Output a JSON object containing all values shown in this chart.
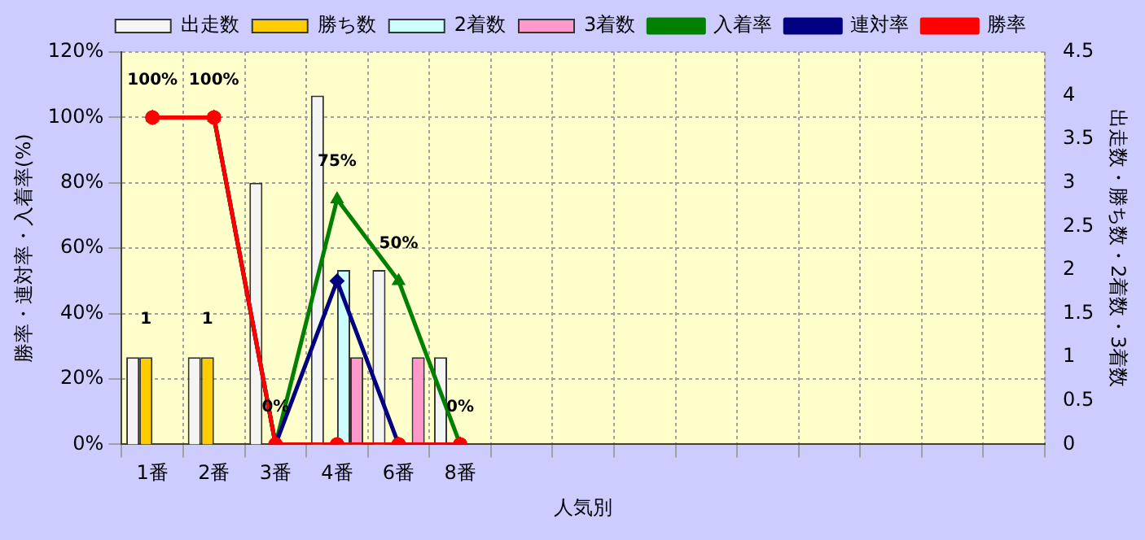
{
  "chart_data": {
    "type": "bar",
    "xlabel": "人気別",
    "ylabel": "勝率・連対率・入着率(%)",
    "y2label": "出走数・勝ち数・2着数・3着数",
    "categories": [
      "1番",
      "2番",
      "3番",
      "4番",
      "6番",
      "8番",
      null,
      null,
      null,
      null,
      null,
      null,
      null,
      null,
      null
    ],
    "series": [
      {
        "name": "出走数",
        "axis": "y2",
        "color": "#f4f4f4",
        "values": [
          1,
          1,
          3,
          4,
          2,
          1,
          null,
          null,
          null,
          null,
          null,
          null,
          null,
          null,
          null
        ]
      },
      {
        "name": "勝ち数",
        "axis": "y2",
        "color": "#ffcc00",
        "values": [
          1,
          1,
          0,
          0,
          0,
          0,
          null,
          null,
          null,
          null,
          null,
          null,
          null,
          null,
          null
        ],
        "value_labels": [
          "1",
          "1",
          null,
          null,
          null,
          null,
          null,
          null,
          null,
          null,
          null,
          null,
          null,
          null,
          null
        ]
      },
      {
        "name": "2着数",
        "axis": "y2",
        "color": "#ccffff",
        "values": [
          0,
          0,
          0,
          2,
          0,
          0,
          null,
          null,
          null,
          null,
          null,
          null,
          null,
          null,
          null
        ]
      },
      {
        "name": "3着数",
        "axis": "y2",
        "color": "#ff99cc",
        "values": [
          0,
          0,
          0,
          1,
          1,
          0,
          null,
          null,
          null,
          null,
          null,
          null,
          null,
          null,
          null
        ]
      },
      {
        "name": "入着率",
        "type": "line",
        "marker": "triangle",
        "color": "#008000",
        "values": [
          100,
          100,
          0,
          75,
          50,
          0,
          null,
          null,
          null,
          null,
          null,
          null,
          null,
          null,
          null
        ],
        "value_labels": [
          "100%",
          "100%",
          "0%",
          "75%",
          "50%",
          "0%",
          null,
          null,
          null,
          null,
          null,
          null,
          null,
          null,
          null
        ]
      },
      {
        "name": "連対率",
        "type": "line",
        "marker": "diamond",
        "color": "#000080",
        "values": [
          100,
          100,
          0,
          50,
          0,
          0,
          null,
          null,
          null,
          null,
          null,
          null,
          null,
          null,
          null
        ]
      },
      {
        "name": "勝率",
        "type": "line",
        "marker": "circle",
        "color": "#ff0000",
        "values": [
          100,
          100,
          0,
          0,
          0,
          0,
          null,
          null,
          null,
          null,
          null,
          null,
          null,
          null,
          null
        ]
      }
    ],
    "ylim": [
      0,
      120
    ],
    "yticks": [
      {
        "value": 0,
        "label": "0%"
      },
      {
        "value": 20,
        "label": "20%"
      },
      {
        "value": 40,
        "label": "40%"
      },
      {
        "value": 60,
        "label": "60%"
      },
      {
        "value": 80,
        "label": "80%"
      },
      {
        "value": 100,
        "label": "100%"
      },
      {
        "value": 120,
        "label": "120%"
      }
    ],
    "y2lim": [
      0,
      4.5
    ],
    "y2ticks": [
      0,
      0.5,
      1,
      1.5,
      2,
      2.5,
      3,
      3.5,
      4,
      4.5
    ],
    "grid": true,
    "legend": "top",
    "line_style": "solid"
  }
}
